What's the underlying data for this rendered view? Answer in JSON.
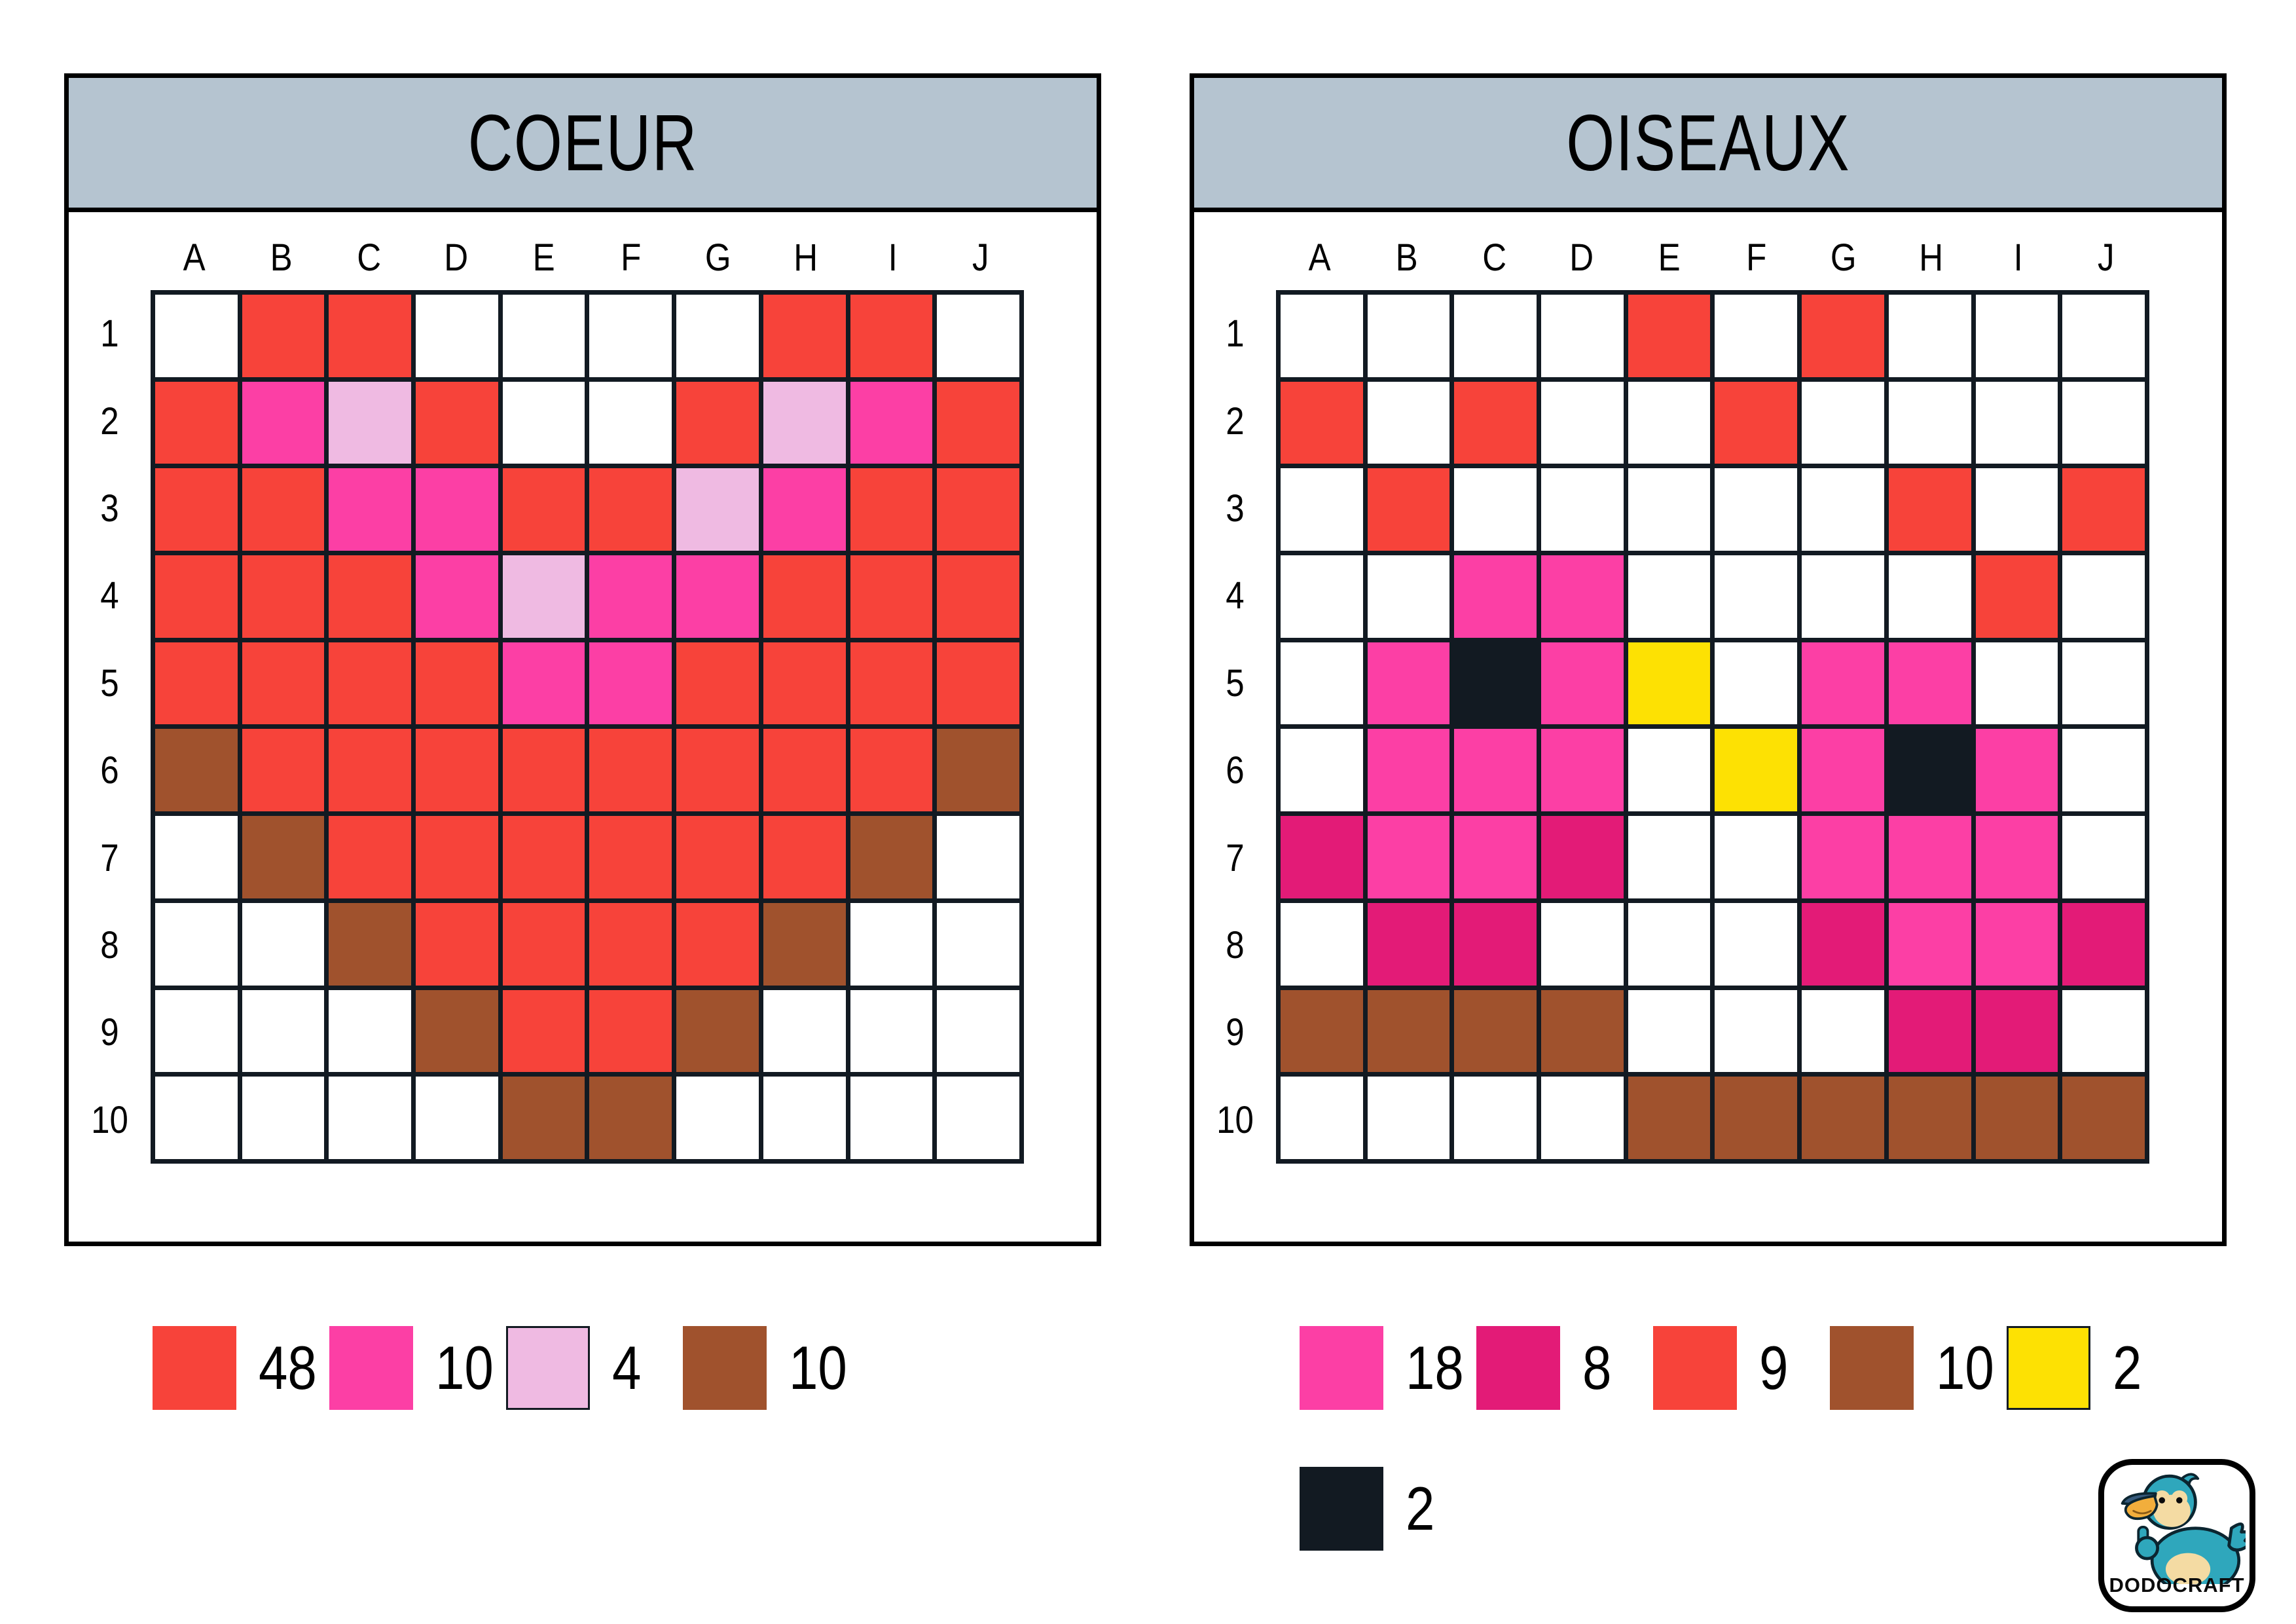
{
  "palette": {
    "W": {
      "hex": "#FFFFFF",
      "name": "white"
    },
    "R": {
      "hex": "#F7433A",
      "name": "red"
    },
    "M": {
      "hex": "#FC3FA5",
      "name": "pink"
    },
    "P": {
      "hex": "#EFBAE2",
      "name": "light-pink"
    },
    "B": {
      "hex": "#A0522D",
      "name": "brown"
    },
    "D": {
      "hex": "#E31B77",
      "name": "dark-pink"
    },
    "Y": {
      "hex": "#FDE103",
      "name": "yellow"
    },
    "K": {
      "hex": "#121A22",
      "name": "black"
    }
  },
  "ui": {
    "title_bar_color": "#B5C4D0",
    "grid_line_color": "#121A22",
    "panel_border_color": "#000000"
  },
  "boards": [
    {
      "id": "coeur",
      "title": "COEUR",
      "columns": [
        "A",
        "B",
        "C",
        "D",
        "E",
        "F",
        "G",
        "H",
        "I",
        "J"
      ],
      "rows": [
        "1",
        "2",
        "3",
        "4",
        "5",
        "6",
        "7",
        "8",
        "9",
        "10"
      ],
      "cells": [
        "WRRWWWWRRW",
        "RMPRWWRPMR",
        "RRMMRRPMRR",
        "RRRMPMMRRR",
        "RRRRMMRRRR",
        "BRRRRRRRRB",
        "WBRRRRRRBW",
        "WWBRRRRBWW",
        "WWWBRRBWWW",
        "WWWWBBWWWW"
      ],
      "legend_rows": [
        [
          {
            "color": "R",
            "count": "48",
            "bordered": false
          },
          {
            "color": "M",
            "count": "10",
            "bordered": false
          },
          {
            "color": "P",
            "count": "4",
            "bordered": true
          },
          {
            "color": "B",
            "count": "10",
            "bordered": false
          }
        ]
      ]
    },
    {
      "id": "oiseaux",
      "title": "OISEAUX",
      "columns": [
        "A",
        "B",
        "C",
        "D",
        "E",
        "F",
        "G",
        "H",
        "I",
        "J"
      ],
      "rows": [
        "1",
        "2",
        "3",
        "4",
        "5",
        "6",
        "7",
        "8",
        "9",
        "10"
      ],
      "cells": [
        "WWWWRWRWWW",
        "RWRWWRWWWW",
        "WRWWWWWRWR",
        "WWMMWWWWRW",
        "WMKMYWMMWW",
        "WMMMWYMKMW",
        "DMMDWWMMMW",
        "WDDWWWDMMD",
        "BBBBWWWDDW",
        "WWWWBBBBBB"
      ],
      "legend_rows": [
        [
          {
            "color": "M",
            "count": "18",
            "bordered": false
          },
          {
            "color": "D",
            "count": "8",
            "bordered": false
          },
          {
            "color": "R",
            "count": "9",
            "bordered": false
          },
          {
            "color": "B",
            "count": "10",
            "bordered": false
          },
          {
            "color": "Y",
            "count": "2",
            "bordered": true
          }
        ],
        [
          {
            "color": "K",
            "count": "2",
            "bordered": false
          }
        ]
      ]
    }
  ],
  "logo": {
    "wordmark": "DODOCRAFT"
  }
}
